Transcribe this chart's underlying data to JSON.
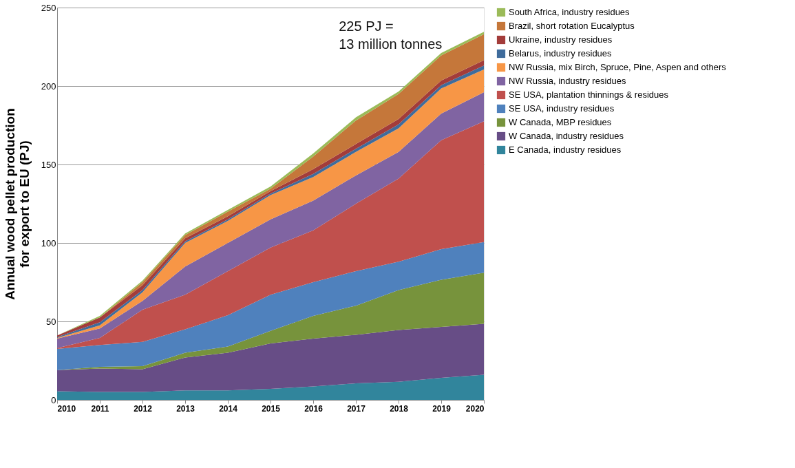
{
  "chart_data": {
    "type": "area",
    "stacked": true,
    "ylabel": "Annual wood pellet production for export to EU (PJ)",
    "x": [
      2010,
      2011,
      2012,
      2013,
      2014,
      2015,
      2016,
      2017,
      2018,
      2019,
      2020
    ],
    "xlim": [
      2010,
      2020
    ],
    "xticks": [
      2010,
      2011,
      2012,
      2013,
      2014,
      2015,
      2016,
      2017,
      2018,
      2019,
      2020
    ],
    "ylim": [
      0,
      250
    ],
    "yticks": [
      0,
      50,
      100,
      150,
      200,
      250
    ],
    "grid": "y",
    "legend": "right",
    "annotations": [
      "225 PJ =\n13 million tonnes"
    ],
    "series": [
      {
        "name": "E Canada, industry residues",
        "color": "#31859c",
        "values": [
          5.5,
          5,
          5,
          6,
          6,
          7,
          8.5,
          10.5,
          11.5,
          14,
          16
        ]
      },
      {
        "name": "W Canada, industry residues",
        "color": "#674d86",
        "values": [
          13.5,
          15,
          14.5,
          21,
          24,
          29,
          30.5,
          31,
          33,
          32.5,
          32.5
        ]
      },
      {
        "name": "W Canada, MBP residues",
        "color": "#77933c",
        "values": [
          0,
          1,
          2,
          3,
          4,
          8,
          14.5,
          18.5,
          25.5,
          30,
          32.5
        ]
      },
      {
        "name": "SE USA, industry residues",
        "color": "#4f81bd",
        "values": [
          13.5,
          14,
          15.5,
          15,
          20,
          23,
          21.5,
          22,
          18,
          19.5,
          19.5
        ]
      },
      {
        "name": "SE USA, plantation thinnings & residues",
        "color": "#c0504d",
        "values": [
          0.5,
          4.5,
          20.5,
          22,
          28,
          30,
          33,
          43,
          53,
          69.5,
          77
        ]
      },
      {
        "name": "NW Russia, industry residues",
        "color": "#8064a2",
        "values": [
          6,
          6,
          5.5,
          18,
          18,
          18,
          19,
          18,
          17,
          17,
          18.5
        ]
      },
      {
        "name": "NW Russia, mix Birch, Spruce, Pine, Aspen and others",
        "color": "#f79646",
        "values": [
          0.5,
          2,
          5.5,
          15,
          14,
          15.5,
          15,
          15,
          15,
          16,
          14.5
        ]
      },
      {
        "name": "Belarus, industry residues",
        "color": "#3f6c9c",
        "values": [
          0.5,
          2,
          1.5,
          1,
          1,
          1,
          2,
          2,
          2.5,
          2,
          2.5
        ]
      },
      {
        "name": "Ukraine, industry residues",
        "color": "#a33c3a",
        "values": [
          1,
          3,
          3,
          2,
          2,
          1.5,
          3,
          3,
          3.5,
          3,
          3.5
        ]
      },
      {
        "name": "Brazil, short rotation Eucalyptus",
        "color": "#c5773a",
        "values": [
          0,
          0,
          2,
          2,
          3,
          1.5,
          8,
          15,
          16,
          16,
          16.5
        ]
      },
      {
        "name": "South Africa, industry residues",
        "color": "#9bbb59",
        "values": [
          0,
          1,
          1,
          1,
          1,
          1.5,
          2,
          2,
          1.5,
          1.5,
          1.5
        ]
      }
    ]
  }
}
